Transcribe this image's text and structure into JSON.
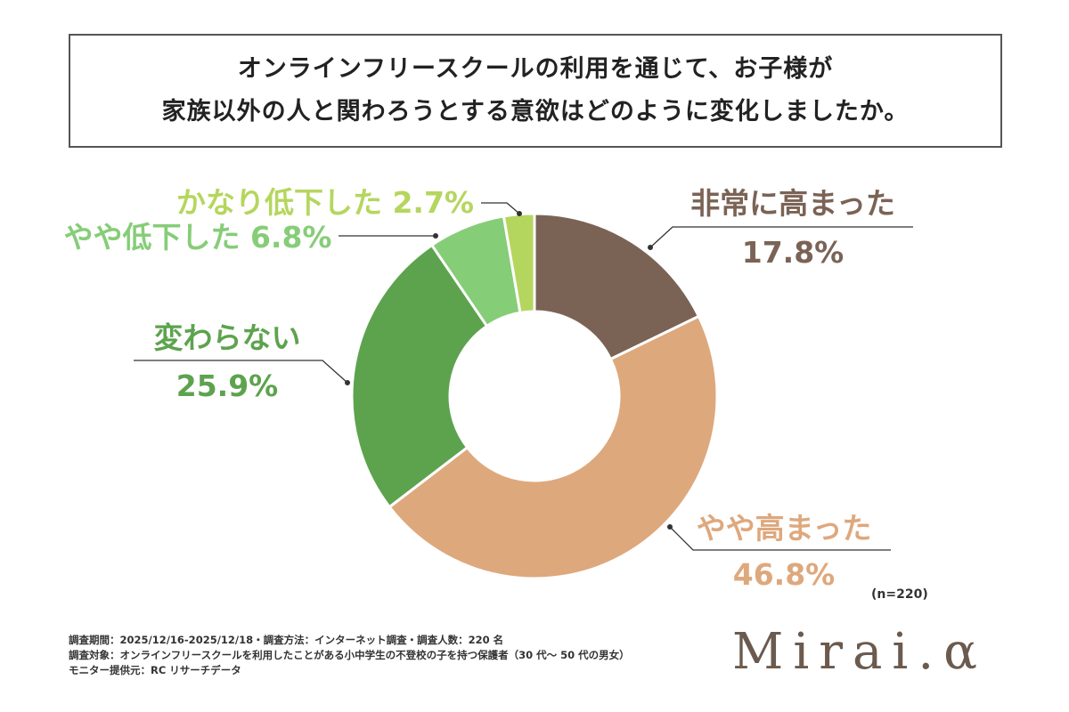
{
  "title": {
    "line1": "オンラインフリースクールの利用を通じて、お子様が",
    "line2": "家族以外の人と関わろうとする意欲はどのように変化しましたか。"
  },
  "chart_data": {
    "type": "pie",
    "donut": true,
    "slices": [
      {
        "label": "非常に高まった",
        "value": 17.8,
        "value_label": "17.8%",
        "color": "#7a6355"
      },
      {
        "label": "やや高まった",
        "value": 46.8,
        "value_label": "46.8%",
        "color": "#dea87d"
      },
      {
        "label": "変わらない",
        "value": 25.9,
        "value_label": "25.9%",
        "color": "#5da34e"
      },
      {
        "label": "やや低下した",
        "value": 6.8,
        "value_label": "6.8%",
        "color": "#86cd78"
      },
      {
        "label": "かなり低下した",
        "value": 2.7,
        "value_label": "2.7%",
        "color": "#b5d65e"
      }
    ],
    "sample_note": "(n=220)"
  },
  "footer": {
    "line1": "調査期間：2025/12/16-2025/12/18・調査方法：インターネット調査・調査人数：220 名",
    "line2": "調査対象：オンラインフリースクールを利用したことがある小中学生の不登校の子を持つ保護者（30 代～ 50 代の男女）",
    "line3": "モニター提供元：RC リサーチデータ"
  },
  "logo": "Mirai.α"
}
